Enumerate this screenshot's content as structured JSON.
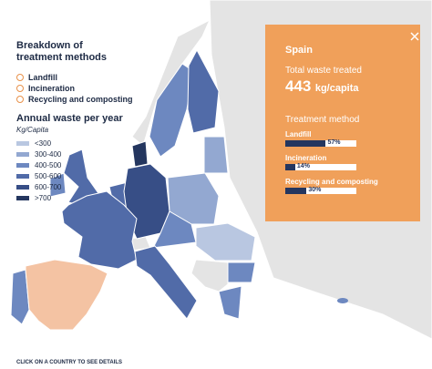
{
  "legend": {
    "title": "Breakdown of treatment methods",
    "options": [
      "Landfill",
      "Incineration",
      "Recycling and composting"
    ]
  },
  "waste_legend": {
    "title": "Annual waste per year",
    "unit": "Kg/Capita",
    "classes": [
      {
        "label": "<300",
        "color": "#b9c7e1"
      },
      {
        "label": "300-400",
        "color": "#93a8d1"
      },
      {
        "label": "400-500",
        "color": "#6d88c0"
      },
      {
        "label": "500-600",
        "color": "#516ba8"
      },
      {
        "label": "600-700",
        "color": "#374e86"
      },
      {
        "label": ">700",
        "color": "#24365f"
      }
    ]
  },
  "panel": {
    "country": "Spain",
    "total_label": "Total waste treated",
    "total_value": "443",
    "total_unit": "kg/capita",
    "method_title": "Treatment method",
    "methods": [
      {
        "name": "Landfill",
        "value": 57,
        "value_label": "57%"
      },
      {
        "name": "Incineration",
        "value": 14,
        "value_label": "14%"
      },
      {
        "name": "Recycling and composting",
        "value": 30,
        "value_label": "30%"
      }
    ]
  },
  "footer": "CLICK ON A COUNTRY TO SEE DETAILS"
}
